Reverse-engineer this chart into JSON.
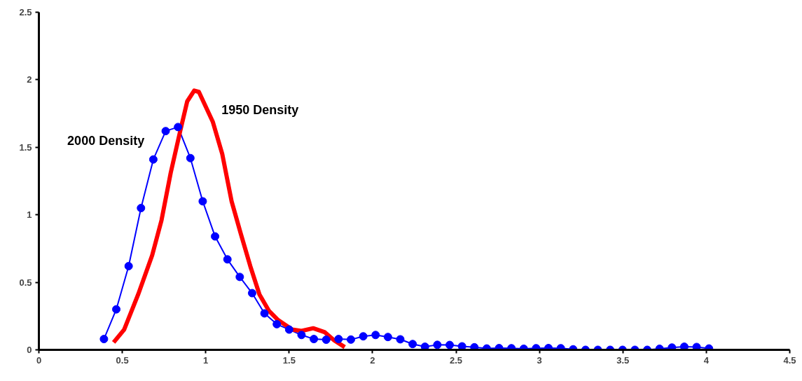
{
  "chart_data": {
    "type": "line",
    "xlim": [
      0,
      4.5
    ],
    "ylim": [
      0,
      2.5
    ],
    "xticks": [
      0,
      0.5,
      1,
      1.5,
      2,
      2.5,
      3,
      3.5,
      4,
      4.5
    ],
    "yticks": [
      0,
      0.5,
      1,
      1.5,
      2,
      2.5
    ],
    "grid": false,
    "series": [
      {
        "name": "2000 Density",
        "color": "#0000ff",
        "marker": "circle",
        "x": [
          0.39,
          0.464,
          0.538,
          0.612,
          0.686,
          0.76,
          0.834,
          0.908,
          0.982,
          1.056,
          1.13,
          1.204,
          1.278,
          1.352,
          1.426,
          1.5,
          1.574,
          1.648,
          1.722,
          1.796,
          1.87,
          1.944,
          2.018,
          2.092,
          2.166,
          2.24,
          2.314,
          2.388,
          2.462,
          2.536,
          2.61,
          2.684,
          2.758,
          2.832,
          2.906,
          2.98,
          3.054,
          3.128,
          3.202,
          3.276,
          3.35,
          3.424,
          3.498,
          3.572,
          3.646,
          3.72,
          3.794,
          3.868,
          3.942,
          4.016
        ],
        "values": [
          0.08,
          0.3,
          0.62,
          1.05,
          1.41,
          1.62,
          1.65,
          1.42,
          1.1,
          0.84,
          0.67,
          0.54,
          0.42,
          0.27,
          0.19,
          0.15,
          0.11,
          0.08,
          0.075,
          0.08,
          0.076,
          0.1,
          0.11,
          0.095,
          0.078,
          0.043,
          0.023,
          0.037,
          0.036,
          0.026,
          0.019,
          0.01,
          0.013,
          0.012,
          0.008,
          0.012,
          0.013,
          0.012,
          0.004,
          0,
          0,
          0,
          0,
          0,
          0,
          0.008,
          0.017,
          0.023,
          0.021,
          0.01
        ]
      },
      {
        "name": "1950 Density",
        "color": "#ff0000",
        "marker": "none",
        "x": [
          0.448,
          0.511,
          0.595,
          0.679,
          0.735,
          0.79,
          0.847,
          0.889,
          0.931,
          0.959,
          1.042,
          1.099,
          1.155,
          1.21,
          1.267,
          1.322,
          1.378,
          1.434,
          1.518,
          1.574,
          1.644,
          1.714,
          1.77,
          1.833
        ],
        "values": [
          0.055,
          0.15,
          0.41,
          0.7,
          0.96,
          1.31,
          1.62,
          1.84,
          1.92,
          1.91,
          1.69,
          1.45,
          1.1,
          0.86,
          0.62,
          0.41,
          0.29,
          0.22,
          0.15,
          0.14,
          0.16,
          0.13,
          0.07,
          0.02
        ]
      }
    ]
  }
}
